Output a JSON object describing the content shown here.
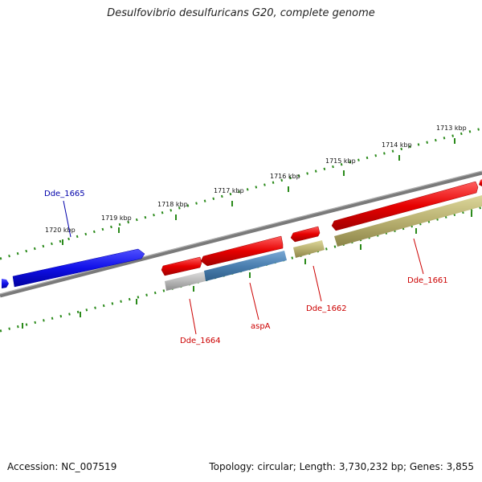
{
  "title": "Desulfovibrio desulfuricans G20, complete genome",
  "footer": {
    "accession": "Accession: NC_007519",
    "stats": "Topology: circular; Length: 3,730,232 bp; Genes: 3,855"
  },
  "colors": {
    "backbone": "#7a7a7a",
    "tick": "#2a8a1a",
    "forward_gene": "#e60000",
    "reverse_gene": "#1010e8",
    "cds_tan": "#b8b070",
    "cds_steel": "#4a7fb0",
    "cds_gray": "#b0b0b0",
    "label_red": "#cc0000",
    "label_blue": "#0000aa"
  },
  "scale": {
    "unit": "kbp",
    "ticks": [
      {
        "label": "1713 kbp"
      },
      {
        "label": "1714 kbp"
      },
      {
        "label": "1715 kbp"
      },
      {
        "label": "1716 kbp"
      },
      {
        "label": "1717 kbp"
      },
      {
        "label": "1718 kbp"
      },
      {
        "label": "1719 kbp"
      },
      {
        "label": "1720 kbp"
      }
    ]
  },
  "genes": [
    {
      "name": "Dde_1665",
      "strand": "reverse",
      "label_color": "label_blue"
    },
    {
      "name": "Dde_1664",
      "strand": "forward",
      "label_color": "label_red"
    },
    {
      "name": "aspA",
      "strand": "forward",
      "label_color": "label_red"
    },
    {
      "name": "Dde_1662",
      "strand": "forward",
      "label_color": "label_red"
    },
    {
      "name": "Dde_1661",
      "strand": "forward",
      "label_color": "label_red"
    }
  ]
}
